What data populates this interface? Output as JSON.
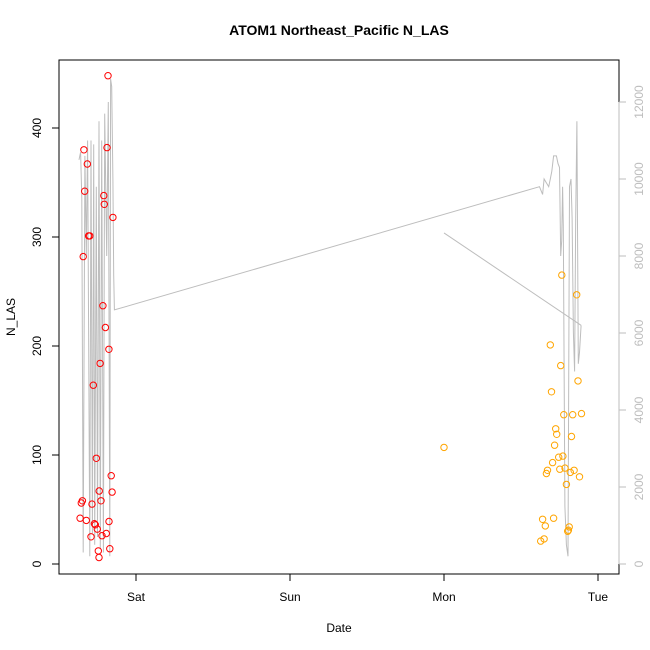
{
  "chart_data": {
    "type": "scatter",
    "title": "ATOM1 Northeast_Pacific N_LAS",
    "xlabel": "Date",
    "ylabel": "N_LAS",
    "x_ticks": [
      "Sat",
      "Sun",
      "Mon",
      "Tue"
    ],
    "x_unit": "days (Sat = 0, Sun = 1, Mon = 2, Tue = 3)",
    "xlim": [
      -0.44,
      3.05
    ],
    "ylim": [
      -5,
      460
    ],
    "y_ticks": [
      0,
      100,
      200,
      300,
      400
    ],
    "y2lim": [
      -150,
      12800
    ],
    "y2_ticks": [
      0,
      2000,
      4000,
      6000,
      8000,
      10000,
      12000
    ],
    "grid": false,
    "legend": "none",
    "colors": {
      "series1": "#ff0000",
      "series2": "#ffa500",
      "secondary": "#bdbdbd"
    },
    "series": [
      {
        "color": "#ff0000",
        "points": [
          [
            -0.363,
            42
          ],
          [
            -0.355,
            56
          ],
          [
            -0.348,
            58
          ],
          [
            -0.343,
            282
          ],
          [
            -0.338,
            380
          ],
          [
            -0.333,
            342
          ],
          [
            -0.323,
            40
          ],
          [
            -0.316,
            367
          ],
          [
            -0.308,
            301
          ],
          [
            -0.3,
            301
          ],
          [
            -0.292,
            25
          ],
          [
            -0.286,
            55
          ],
          [
            -0.277,
            164
          ],
          [
            -0.27,
            37
          ],
          [
            -0.264,
            36
          ],
          [
            -0.258,
            97
          ],
          [
            -0.251,
            32
          ],
          [
            -0.245,
            12
          ],
          [
            -0.239,
            67
          ],
          [
            -0.233,
            184
          ],
          [
            -0.227,
            58
          ],
          [
            -0.221,
            26
          ],
          [
            -0.215,
            237
          ],
          [
            -0.209,
            338
          ],
          [
            -0.206,
            330
          ],
          [
            -0.199,
            217
          ],
          [
            -0.193,
            28
          ],
          [
            -0.188,
            382
          ],
          [
            -0.182,
            448
          ],
          [
            -0.176,
            197
          ],
          [
            -0.17,
            14
          ],
          [
            -0.175,
            39
          ],
          [
            -0.161,
            81
          ],
          [
            -0.155,
            66
          ],
          [
            -0.15,
            318
          ],
          [
            -0.24,
            6
          ]
        ]
      },
      {
        "color": "#ffa500",
        "points": [
          [
            2.0,
            107
          ],
          [
            2.628,
            21
          ],
          [
            2.64,
            41
          ],
          [
            2.65,
            23
          ],
          [
            2.658,
            35
          ],
          [
            2.665,
            83
          ],
          [
            2.672,
            86
          ],
          [
            2.69,
            201
          ],
          [
            2.698,
            158
          ],
          [
            2.705,
            93
          ],
          [
            2.712,
            42
          ],
          [
            2.718,
            109
          ],
          [
            2.725,
            124
          ],
          [
            2.732,
            119
          ],
          [
            2.745,
            98
          ],
          [
            2.752,
            87
          ],
          [
            2.758,
            182
          ],
          [
            2.765,
            265
          ],
          [
            2.772,
            99
          ],
          [
            2.778,
            137
          ],
          [
            2.786,
            88
          ],
          [
            2.795,
            73
          ],
          [
            2.803,
            30
          ],
          [
            2.808,
            31
          ],
          [
            2.813,
            34
          ],
          [
            2.82,
            84
          ],
          [
            2.828,
            117
          ],
          [
            2.836,
            137
          ],
          [
            2.845,
            86
          ],
          [
            2.87,
            168
          ],
          [
            2.88,
            80
          ],
          [
            2.893,
            138
          ],
          [
            2.862,
            247
          ]
        ]
      }
    ],
    "secondary_series": {
      "color": "#bdbdbd",
      "points": [
        [
          -0.37,
          10500
        ],
        [
          -0.36,
          10700
        ],
        [
          -0.352,
          9500
        ],
        [
          -0.343,
          300
        ],
        [
          -0.332,
          10600
        ],
        [
          -0.323,
          8000
        ],
        [
          -0.314,
          11000
        ],
        [
          -0.3,
          200
        ],
        [
          -0.292,
          11000
        ],
        [
          -0.283,
          800
        ],
        [
          -0.275,
          10900
        ],
        [
          -0.268,
          500
        ],
        [
          -0.258,
          9800
        ],
        [
          -0.25,
          700
        ],
        [
          -0.24,
          11500
        ],
        [
          -0.232,
          400
        ],
        [
          -0.223,
          11000
        ],
        [
          -0.212,
          300
        ],
        [
          -0.203,
          11700
        ],
        [
          -0.19,
          8000
        ],
        [
          -0.18,
          12000
        ],
        [
          -0.17,
          200
        ],
        [
          -0.165,
          12600
        ],
        [
          -0.158,
          12400
        ],
        [
          -0.15,
          10000
        ],
        [
          -0.145,
          7500
        ],
        [
          -0.14,
          6600
        ],
        [
          2.62,
          9800
        ],
        [
          2.64,
          9600
        ],
        [
          2.65,
          10000
        ],
        [
          2.665,
          9900
        ],
        [
          2.68,
          9800
        ],
        [
          2.69,
          10000
        ],
        [
          2.7,
          10200
        ],
        [
          2.712,
          10600
        ],
        [
          2.73,
          10600
        ],
        [
          2.74,
          10400
        ],
        [
          2.75,
          10300
        ],
        [
          2.758,
          8000
        ],
        [
          2.764,
          8400
        ],
        [
          2.77,
          9800
        ],
        [
          2.775,
          8800
        ],
        [
          2.785,
          1500
        ],
        [
          2.795,
          500
        ],
        [
          2.805,
          200
        ],
        [
          2.815,
          9800
        ],
        [
          2.825,
          10000
        ],
        [
          2.832,
          9000
        ],
        [
          2.84,
          6000
        ],
        [
          2.848,
          5000
        ],
        [
          2.855,
          9000
        ],
        [
          2.863,
          11500
        ],
        [
          2.872,
          5200
        ],
        [
          2.88,
          5500
        ],
        [
          2.89,
          6200
        ]
      ],
      "segment": [
        [
          2.0,
          8600
        ],
        [
          2.89,
          6200
        ]
      ]
    }
  }
}
